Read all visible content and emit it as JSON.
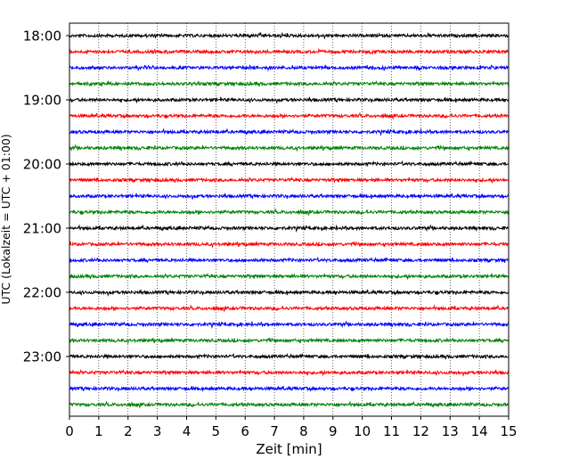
{
  "chart_data": {
    "type": "line",
    "title": "",
    "xlabel": "Zeit  [min]",
    "ylabel": "UTC (Lokalzeit = UTC + 01:00)",
    "xlim": [
      0,
      15
    ],
    "x_ticks": [
      "0",
      "1",
      "2",
      "3",
      "4",
      "5",
      "6",
      "7",
      "8",
      "9",
      "10",
      "11",
      "12",
      "13",
      "14",
      "15"
    ],
    "y_ticks": [
      "18:00",
      "19:00",
      "20:00",
      "21:00",
      "22:00",
      "23:00"
    ],
    "grid": "vertical-dotted",
    "trace_colors": [
      "#000000",
      "#ff0000",
      "#0000ff",
      "#008000"
    ],
    "traces_start": "18:00",
    "trace_interval_min": 15,
    "trace_count": 24
  }
}
